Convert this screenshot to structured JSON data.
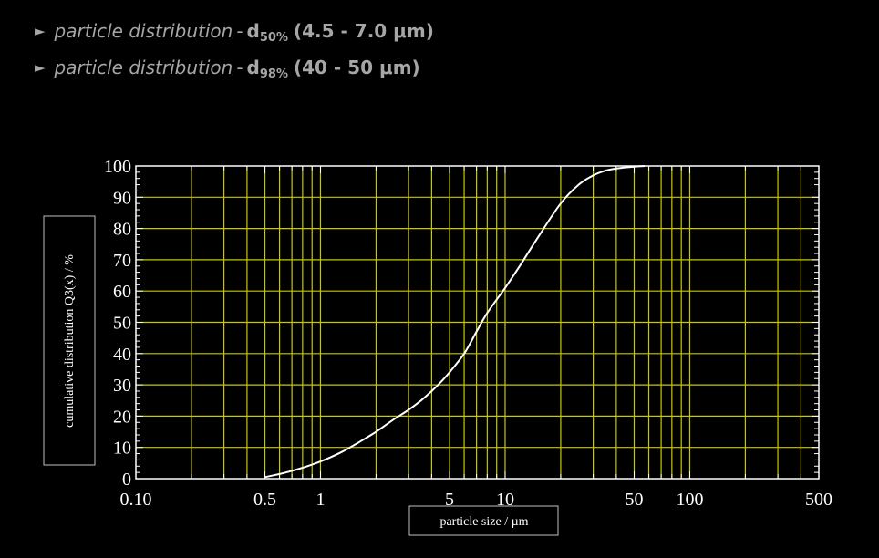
{
  "header": {
    "lines": [
      {
        "arrow": "►",
        "term": "particle distribution",
        "sep": "-",
        "d_symbol": "d",
        "d_sub": "50%",
        "range": "(4.5 - 7.0 μm)"
      },
      {
        "arrow": "►",
        "term": "particle distribution",
        "sep": "-",
        "d_symbol": "d",
        "d_sub": "98%",
        "range": "(40 - 50 μm)"
      }
    ]
  },
  "chart_data": {
    "type": "line",
    "title": "",
    "xlabel": "particle size / µm",
    "ylabel": "cumulative distribution Q3(x) / %",
    "xscale": "log",
    "xlim": [
      0.1,
      500
    ],
    "ylim": [
      0,
      100
    ],
    "grid": true,
    "grid_color": "#c8c800",
    "line_color": "#ffffff",
    "background": "#000000",
    "x_tick_labels": [
      "0.10",
      "0.5",
      "1",
      "5",
      "10",
      "50",
      "100",
      "500"
    ],
    "x_tick_values": [
      0.1,
      0.5,
      1,
      5,
      10,
      50,
      100,
      500
    ],
    "y_tick_labels": [
      "0",
      "10",
      "20",
      "30",
      "40",
      "50",
      "60",
      "70",
      "80",
      "90",
      "100"
    ],
    "y_tick_values": [
      0,
      10,
      20,
      30,
      40,
      50,
      60,
      70,
      80,
      90,
      100
    ],
    "series": [
      {
        "name": "",
        "x": [
          0.5,
          0.6,
          0.7,
          0.8,
          1.0,
          1.3,
          1.6,
          2.0,
          2.5,
          3.0,
          3.5,
          4.0,
          4.5,
          5.0,
          6.0,
          7.0,
          8.0,
          10.0,
          12.0,
          15.0,
          20.0,
          25.0,
          30.0,
          35.0,
          40.0,
          50.0,
          57.0
        ],
        "y": [
          0.5,
          1.5,
          2.5,
          3.5,
          5.5,
          8.5,
          11.5,
          15.0,
          19.0,
          22.0,
          25.0,
          28.0,
          31.0,
          34.0,
          40.0,
          47.0,
          53.0,
          61.0,
          68.0,
          77.0,
          88.0,
          94.0,
          97.0,
          98.5,
          99.2,
          99.8,
          100.0
        ]
      }
    ]
  }
}
